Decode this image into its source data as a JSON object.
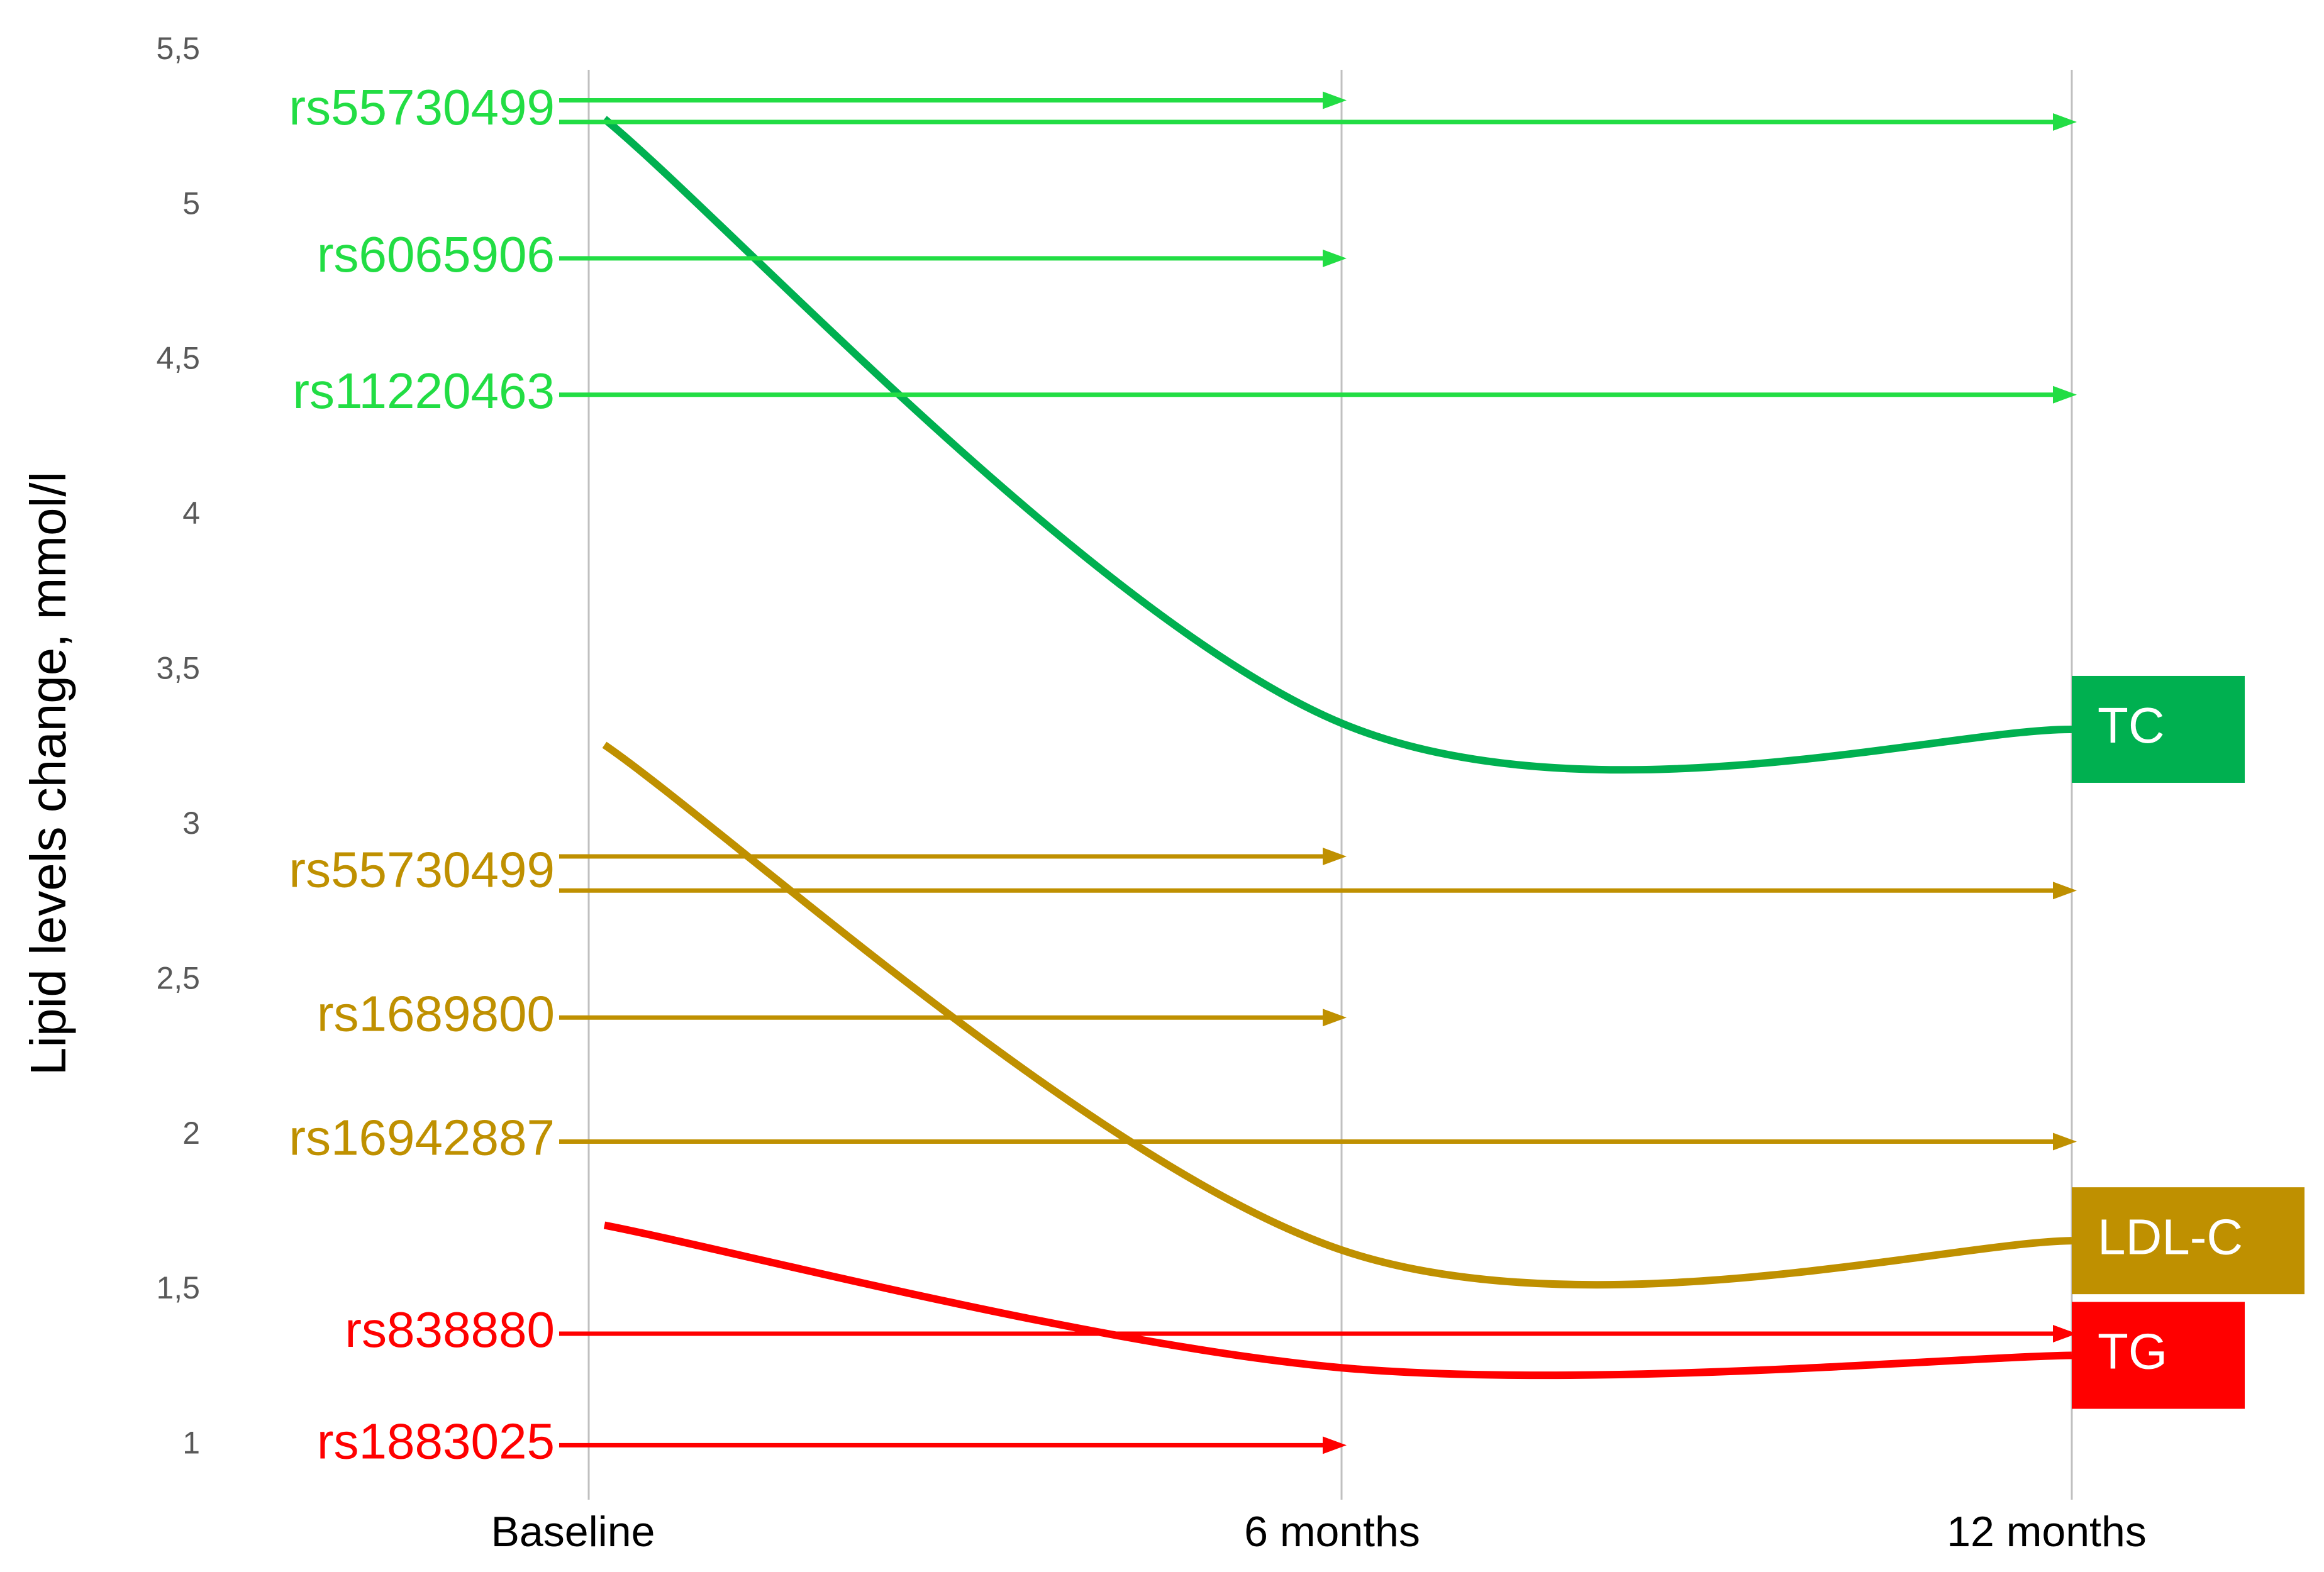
{
  "chart_data": {
    "type": "line",
    "y_label": "Lipid levels change, mmol/l",
    "categories": [
      "Baseline",
      "6 months",
      "12 months"
    ],
    "series": [
      {
        "name": "TC",
        "color": "#00b050",
        "values": [
          5.28,
          3.33,
          3.31
        ]
      },
      {
        "name": "LDL-C",
        "color": "#bf9000",
        "values": [
          3.26,
          1.63,
          1.66
        ]
      },
      {
        "name": "TG",
        "color": "#ff0000",
        "values": [
          1.71,
          1.25,
          1.29
        ]
      }
    ],
    "arrows": [
      {
        "name": "rs55730499",
        "color": "#22dd44",
        "values": [
          [
            5.34,
            5.34,
            null
          ],
          [
            5.27,
            5.27,
            5.27
          ]
        ]
      },
      {
        "name": "rs6065906",
        "color": "#22dd44",
        "values": [
          [
            4.83,
            4.83,
            null
          ]
        ]
      },
      {
        "name": "rs11220463",
        "color": "#22dd44",
        "values": [
          [
            4.39,
            4.39,
            4.39
          ]
        ]
      },
      {
        "name": "rs55730499",
        "color": "#bf9000",
        "values": [
          [
            2.9,
            2.9,
            null
          ],
          [
            2.79,
            2.79,
            2.79
          ]
        ]
      },
      {
        "name": "rs1689800",
        "color": "#bf9000",
        "values": [
          [
            2.38,
            2.38,
            null
          ]
        ]
      },
      {
        "name": "rs16942887",
        "color": "#bf9000",
        "values": [
          [
            1.98,
            1.98,
            1.98
          ]
        ]
      },
      {
        "name": "rs838880",
        "color": "#ff0000",
        "values": [
          [
            1.36,
            1.36,
            1.36
          ]
        ]
      },
      {
        "name": "rs1883025",
        "color": "#ff0000",
        "values": [
          [
            1.0,
            1.0,
            null
          ]
        ]
      }
    ],
    "ylim": [
      0.8,
      5.55
    ],
    "yticks": [
      1,
      {
        "value": 1.5,
        "label": "1,5"
      },
      2,
      {
        "value": 2.5,
        "label": "2,5"
      },
      3,
      {
        "value": 3.5,
        "label": "3,5"
      },
      4,
      {
        "value": 4.5,
        "label": "4,5"
      },
      5,
      {
        "value": 5.5,
        "label": "5,5"
      }
    ]
  }
}
